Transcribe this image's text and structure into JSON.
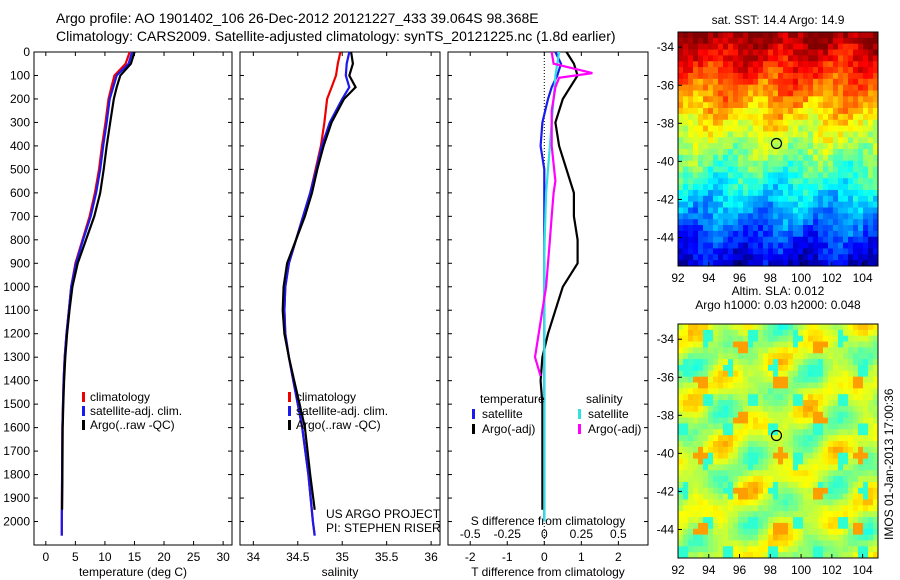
{
  "header": {
    "line1": "Argo profile: AO 1901402_106 26-Dec-2012 20121227_433 39.064S 98.368E",
    "line2": "Climatology: CARS2009. Satellite-adjusted climatology: synTS_20121225.nc (1.8d earlier)"
  },
  "credit": {
    "line1": "US ARGO PROJECT",
    "line2": "PI: STEPHEN RISER"
  },
  "stamp": "IMOS 01-Jan-2013 17:00:36",
  "colors": {
    "climatology": "#ee0000",
    "satellite": "#1a1aee",
    "argo": "#000000",
    "argo_salinity_diff": "#ff00ff",
    "sat_salinity_diff": "#33e0e0"
  },
  "chart_data": [
    {
      "type": "line",
      "xlabel": "temperature (deg C)",
      "ylabel": "",
      "xlim": [
        -2,
        31.5
      ],
      "ylim": [
        2100,
        0
      ],
      "xticks": [
        "0",
        "5",
        "10",
        "15",
        "20",
        "25",
        "30"
      ],
      "yticks": [
        "0",
        "100",
        "200",
        "300",
        "400",
        "500",
        "600",
        "700",
        "800",
        "900",
        "1000",
        "1100",
        "1200",
        "1300",
        "1400",
        "1500",
        "1600",
        "1700",
        "1800",
        "1900",
        "2000"
      ],
      "legend": [
        "climatology",
        "satellite-adj. clim.",
        "Argo(..raw -QC)"
      ],
      "legend_position": "lower-right",
      "series": [
        {
          "name": "climatology",
          "color": "#ee0000",
          "x": [
            14.2,
            13.5,
            11.6,
            11.1,
            10.6,
            10.1,
            9.5,
            9.0,
            8.3,
            7.4,
            6.2,
            5.0,
            4.3,
            3.9,
            3.5,
            3.2,
            3.0,
            2.9,
            2.8,
            2.75,
            2.7,
            2.7
          ],
          "y": [
            0,
            50,
            100,
            150,
            200,
            300,
            400,
            500,
            600,
            700,
            800,
            900,
            1000,
            1100,
            1200,
            1300,
            1400,
            1500,
            1600,
            1800,
            2000,
            2060
          ]
        },
        {
          "name": "satellite-adj. clim.",
          "color": "#1a1aee",
          "x": [
            14.6,
            14.0,
            12.0,
            11.4,
            10.8,
            10.3,
            9.7,
            9.2,
            8.5,
            7.6,
            6.3,
            5.1,
            4.3,
            3.9,
            3.5,
            3.2,
            3.0,
            2.9,
            2.8,
            2.75,
            2.7,
            2.7
          ],
          "y": [
            0,
            50,
            100,
            150,
            200,
            300,
            400,
            500,
            600,
            700,
            800,
            900,
            1000,
            1100,
            1200,
            1300,
            1400,
            1500,
            1600,
            1800,
            2000,
            2060
          ]
        },
        {
          "name": "Argo(..raw -QC)",
          "color": "#000000",
          "x": [
            15.0,
            14.4,
            12.6,
            12.0,
            11.5,
            10.9,
            10.3,
            9.8,
            9.2,
            8.2,
            6.8,
            5.4,
            4.5,
            4.0,
            3.6,
            3.3,
            3.1,
            2.95,
            2.85,
            2.8,
            2.75
          ],
          "y": [
            0,
            50,
            100,
            150,
            200,
            300,
            400,
            500,
            600,
            700,
            800,
            900,
            1000,
            1100,
            1200,
            1300,
            1400,
            1500,
            1600,
            1800,
            1950
          ]
        }
      ]
    },
    {
      "type": "line",
      "xlabel": "salinity",
      "ylabel": "",
      "xlim": [
        33.85,
        36.1
      ],
      "ylim": [
        2100,
        0
      ],
      "xticks": [
        "34",
        "34.5",
        "35",
        "35.5",
        "36"
      ],
      "legend": [
        "climatology",
        "satellite-adj. clim.",
        "Argo(..raw -QC)"
      ],
      "legend_position": "lower-right",
      "series": [
        {
          "name": "climatology",
          "color": "#ee0000",
          "x": [
            34.98,
            34.95,
            34.93,
            34.88,
            34.83,
            34.8,
            34.76,
            34.7,
            34.64,
            34.56,
            34.48,
            34.4,
            34.36,
            34.35,
            34.36,
            34.4,
            34.45,
            34.5,
            34.55,
            34.62,
            34.67,
            34.69
          ],
          "y": [
            0,
            50,
            100,
            150,
            200,
            300,
            400,
            500,
            600,
            700,
            800,
            900,
            1000,
            1100,
            1200,
            1300,
            1400,
            1500,
            1600,
            1800,
            2000,
            2060
          ]
        },
        {
          "name": "satellite-adj. clim.",
          "color": "#1a1aee",
          "x": [
            35.08,
            35.05,
            35.04,
            35.08,
            35.0,
            34.86,
            34.77,
            34.71,
            34.64,
            34.56,
            34.48,
            34.4,
            34.36,
            34.35,
            34.36,
            34.4,
            34.45,
            34.5,
            34.55,
            34.62,
            34.67,
            34.69
          ],
          "y": [
            0,
            50,
            100,
            150,
            200,
            300,
            400,
            500,
            600,
            700,
            800,
            900,
            1000,
            1100,
            1200,
            1300,
            1400,
            1500,
            1600,
            1800,
            2000,
            2060
          ]
        },
        {
          "name": "Argo(..raw -QC)",
          "color": "#000000",
          "x": [
            35.1,
            35.12,
            35.08,
            35.15,
            35.02,
            34.88,
            34.79,
            34.72,
            34.66,
            34.58,
            34.48,
            34.38,
            34.34,
            34.33,
            34.35,
            34.4,
            34.46,
            34.52,
            34.58,
            34.64,
            34.69
          ],
          "y": [
            0,
            50,
            100,
            150,
            200,
            300,
            400,
            500,
            600,
            700,
            800,
            900,
            1000,
            1100,
            1200,
            1300,
            1400,
            1500,
            1600,
            1800,
            1950
          ]
        }
      ]
    },
    {
      "type": "line",
      "xlabel": "T difference from climatology",
      "top_label": "S difference from climatology",
      "xlim": [
        -2.6,
        2.8
      ],
      "ylim": [
        2100,
        0
      ],
      "xticks": [
        "-2",
        "-1",
        "0",
        "1",
        "2"
      ],
      "top_xticks": [
        "-0.5",
        "-0.25",
        "0",
        "0.25",
        "0.5"
      ],
      "legend_groups": [
        {
          "title": "temperature",
          "items": [
            "satellite",
            "Argo(-adj)"
          ]
        },
        {
          "title": "salinity",
          "items": [
            "satellite",
            "Argo(-adj)"
          ]
        }
      ],
      "series": [
        {
          "name": "satellite",
          "color": "#1a1aee",
          "x": [
            0.3,
            0.45,
            0.35,
            0.2,
            0.1,
            -0.05,
            -0.1,
            0.0,
            0.0,
            0.0,
            0.0,
            0.0,
            0.0,
            0.0,
            0.0,
            0.0,
            0.0,
            0.0,
            0.0,
            0.0,
            0.0
          ],
          "y": [
            0,
            50,
            100,
            150,
            200,
            300,
            400,
            500,
            600,
            700,
            800,
            900,
            1000,
            1100,
            1200,
            1300,
            1400,
            1500,
            1600,
            1800,
            2000
          ]
        },
        {
          "name": "Argo(-adj)",
          "color": "#000000",
          "x": [
            0.6,
            0.8,
            0.9,
            0.7,
            0.5,
            0.3,
            0.4,
            0.6,
            0.8,
            0.8,
            0.9,
            0.9,
            0.5,
            0.3,
            0.1,
            -0.05,
            -0.1,
            -0.05,
            -0.05,
            -0.05,
            -0.05
          ],
          "y": [
            0,
            50,
            100,
            150,
            200,
            300,
            400,
            500,
            600,
            700,
            800,
            900,
            1000,
            1100,
            1200,
            1300,
            1400,
            1500,
            1600,
            1800,
            1950
          ]
        },
        {
          "name": "satellite",
          "color": "#33e0e0",
          "x": [
            0.4,
            0.35,
            0.3,
            0.28,
            0.25,
            0.2,
            0.15,
            0.1,
            0.05,
            0.03,
            0.01,
            0.0,
            0.0,
            0.0,
            0.0,
            0.0,
            0.0,
            0.0,
            0.0,
            0.0,
            0.0
          ],
          "y": [
            0,
            50,
            100,
            150,
            200,
            300,
            400,
            500,
            600,
            700,
            800,
            900,
            1000,
            1100,
            1200,
            1300,
            1400,
            1500,
            1600,
            1800,
            2000
          ]
        },
        {
          "name": "Argo(-adj)",
          "color": "#ff00ff",
          "x": [
            0.2,
            0.25,
            1.3,
            0.4,
            0.3,
            0.2,
            0.2,
            0.3,
            0.25,
            0.2,
            0.15,
            0.1,
            0.05,
            -0.05,
            -0.15,
            -0.25,
            -0.1
          ],
          "y": [
            0,
            50,
            90,
            110,
            150,
            250,
            400,
            550,
            600,
            700,
            800,
            900,
            1000,
            1100,
            1200,
            1300,
            1380
          ]
        }
      ]
    },
    {
      "type": "heatmap",
      "title": "sat. SST: 14.4  Argo: 14.9",
      "xticks": [
        "92",
        "94",
        "96",
        "98",
        "100",
        "102",
        "104"
      ],
      "yticks": [
        "-34",
        "-36",
        "-38",
        "-40",
        "-42",
        "-44"
      ],
      "xlim": [
        92,
        105
      ],
      "ylim": [
        -45.5,
        -33.2
      ],
      "marker": {
        "lon": 98.4,
        "lat": -39.06
      }
    },
    {
      "type": "heatmap",
      "title": "Altim. SLA: 0.012",
      "subtitle": "Argo h1000: 0.03 h2000: 0.048",
      "xticks": [
        "92",
        "94",
        "96",
        "98",
        "100",
        "102",
        "104"
      ],
      "yticks": [
        "-34",
        "-36",
        "-38",
        "-40",
        "-42",
        "-44"
      ],
      "xlim": [
        92,
        105
      ],
      "ylim": [
        -45.5,
        -33.2
      ],
      "marker": {
        "lon": 98.4,
        "lat": -39.06
      }
    }
  ]
}
